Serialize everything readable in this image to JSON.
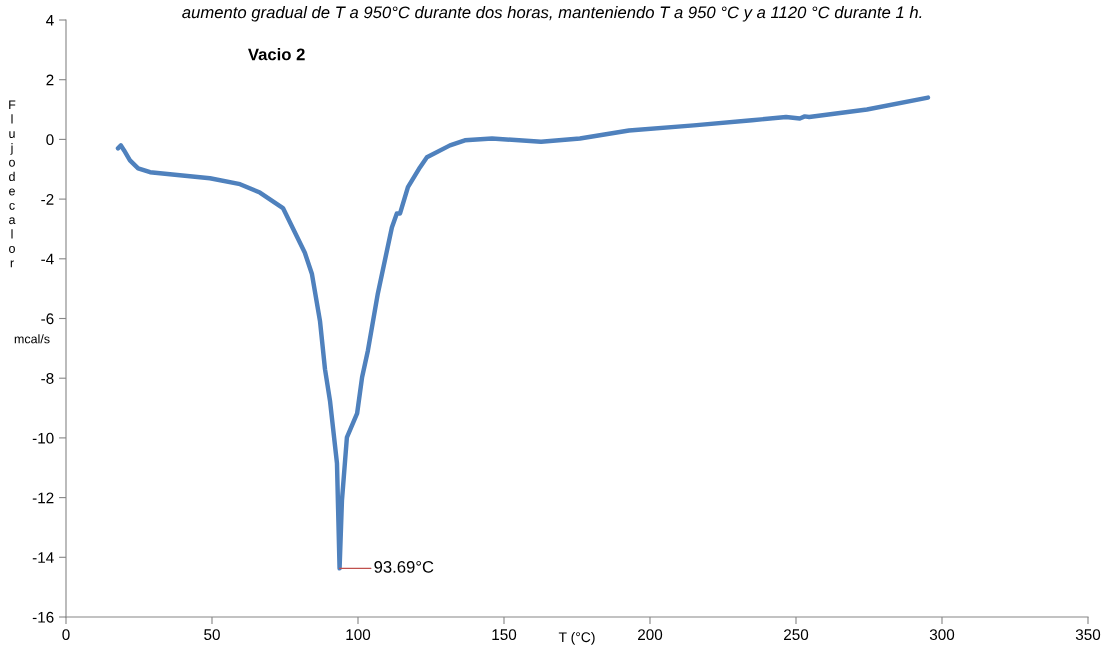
{
  "chart_data": {
    "type": "line",
    "title": "Vacio 2",
    "xlabel": "T (°C)",
    "ylabel": "Flujo de calor mcal/s",
    "annotations": [
      "aumento gradual de T a 950°C durante dos horas, manteniendo T a 950 °C y a 1120 °C durante 1 h.",
      {
        "text": "93.69°C",
        "x": 93.69,
        "y": -14.37
      }
    ],
    "series": [
      {
        "color": "#4f81bd",
        "x": [
          17.8,
          18.8,
          19.9,
          21.9,
          24.7,
          28.8,
          39,
          49.3,
          59.6,
          66.4,
          74.3,
          81.8,
          84.2,
          87,
          88.7,
          90.4,
          92.8,
          93.69,
          94.5,
          96.2,
          99.7,
          101.4,
          103.4,
          106.8,
          111.6,
          113.3,
          114.4,
          117.1,
          121.2,
          123.6,
          131.5,
          136.6,
          145.9,
          162.7,
          176,
          192.8,
          215,
          234.9,
          246.6,
          251.3,
          253,
          254.5,
          274.3,
          295.2
        ],
        "values": [
          -0.3,
          -0.2,
          -0.37,
          -0.7,
          -0.97,
          -1.1,
          -1.2,
          -1.3,
          -1.5,
          -1.78,
          -2.3,
          -3.8,
          -4.5,
          -6.1,
          -7.7,
          -8.75,
          -10.85,
          -14.37,
          -12.1,
          -9.98,
          -9.18,
          -7.97,
          -7.07,
          -5.16,
          -2.95,
          -2.48,
          -2.48,
          -1.6,
          -0.94,
          -0.6,
          -0.2,
          -0.03,
          0.03,
          -0.08,
          0.03,
          0.3,
          0.47,
          0.64,
          0.75,
          0.7,
          0.77,
          0.75,
          1.0,
          1.4
        ]
      }
    ],
    "xlim": [
      0,
      350
    ],
    "xticks": [
      0,
      50,
      100,
      150,
      200,
      250,
      300,
      350
    ],
    "ylim": [
      -16,
      4
    ],
    "yticks": [
      -16,
      -14,
      -12,
      -10,
      -8,
      -6,
      -4,
      -2,
      0,
      2,
      4
    ],
    "grid": false,
    "legend": false,
    "marker": "none",
    "line_style": "solid"
  }
}
